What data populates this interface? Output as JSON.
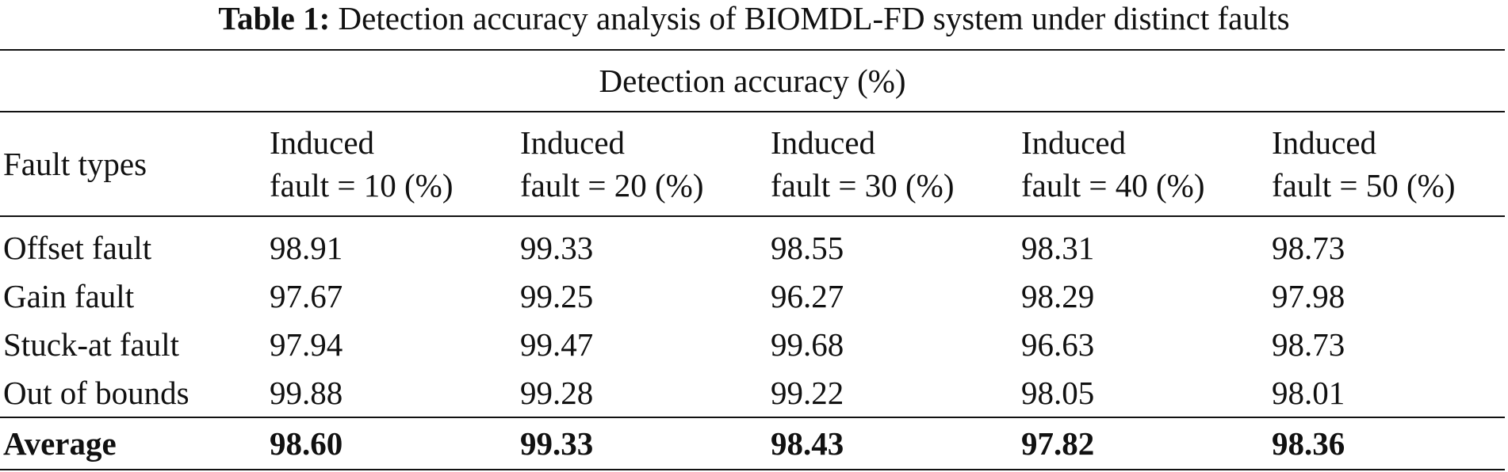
{
  "caption": {
    "label": "Table 1:",
    "text": "Detection accuracy analysis of BIOMDL-FD system under distinct faults"
  },
  "table": {
    "group_header": "Detection accuracy (%)",
    "row_header": "Fault types",
    "columns": [
      {
        "line1": "Induced",
        "line2": "fault = 10 (%)"
      },
      {
        "line1": "Induced",
        "line2": "fault = 20 (%)"
      },
      {
        "line1": "Induced",
        "line2": "fault = 30 (%)"
      },
      {
        "line1": "Induced",
        "line2": "fault = 40 (%)"
      },
      {
        "line1": "Induced",
        "line2": "fault = 50 (%)"
      }
    ],
    "rows": [
      {
        "label": "Offset fault",
        "values": [
          "98.91",
          "99.33",
          "98.55",
          "98.31",
          "98.73"
        ]
      },
      {
        "label": "Gain fault",
        "values": [
          "97.67",
          "99.25",
          "96.27",
          "98.29",
          "97.98"
        ]
      },
      {
        "label": "Stuck-at fault",
        "values": [
          "97.94",
          "99.47",
          "99.68",
          "96.63",
          "98.73"
        ]
      },
      {
        "label": "Out of bounds",
        "values": [
          "99.88",
          "99.28",
          "99.22",
          "98.05",
          "98.01"
        ]
      }
    ],
    "average": {
      "label": "Average",
      "values": [
        "98.60",
        "99.33",
        "98.43",
        "97.82",
        "98.36"
      ]
    }
  }
}
